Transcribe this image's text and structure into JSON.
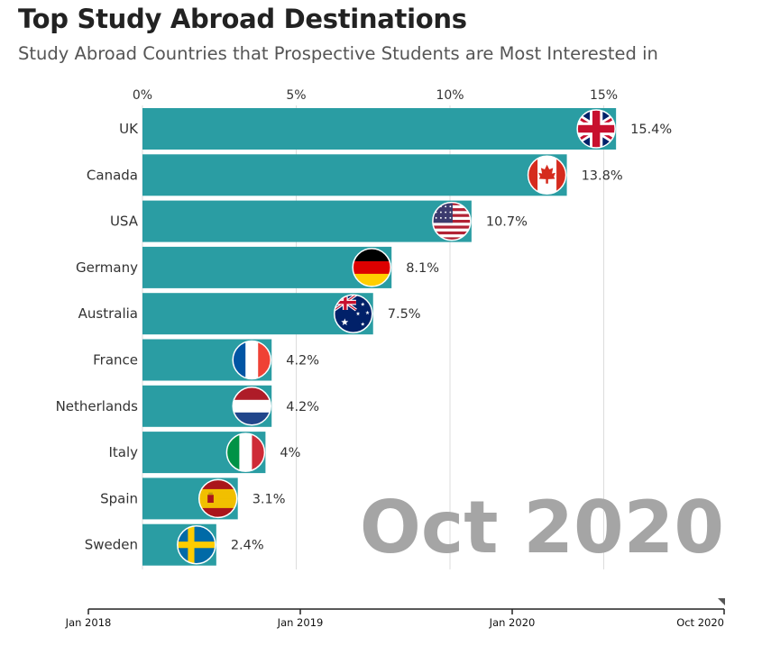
{
  "header": {
    "title": "Top Study Abroad Destinations",
    "subtitle": "Study Abroad Countries that Prospective Students are Most Interested in"
  },
  "chart_data": {
    "type": "bar",
    "orientation": "horizontal",
    "categories": [
      "UK",
      "Canada",
      "USA",
      "Germany",
      "Australia",
      "France",
      "Netherlands",
      "Italy",
      "Spain",
      "Sweden"
    ],
    "values": [
      15.4,
      13.8,
      10.7,
      8.1,
      7.5,
      4.2,
      4.2,
      4,
      3.1,
      2.4
    ],
    "value_labels": [
      "15.4%",
      "13.8%",
      "10.7%",
      "8.1%",
      "7.5%",
      "4.2%",
      "4.2%",
      "4%",
      "3.1%",
      "2.4%"
    ],
    "flags": [
      "uk-flag",
      "canada-flag",
      "usa-flag",
      "germany-flag",
      "australia-flag",
      "france-flag",
      "netherlands-flag",
      "italy-flag",
      "spain-flag",
      "sweden-flag"
    ],
    "xlim": [
      0,
      18
    ],
    "x_ticks": [
      0,
      5,
      10,
      15
    ],
    "x_tick_labels": [
      "0%",
      "5%",
      "10%",
      "15%"
    ],
    "x_axis_position": "top",
    "grid": true,
    "bar_color": "#2a9da3",
    "period_label": "Oct 2020",
    "timeline": {
      "labels": [
        "Jan 2018",
        "Jan 2019",
        "Jan 2020",
        "Oct 2020"
      ],
      "current": "Oct 2020"
    }
  }
}
